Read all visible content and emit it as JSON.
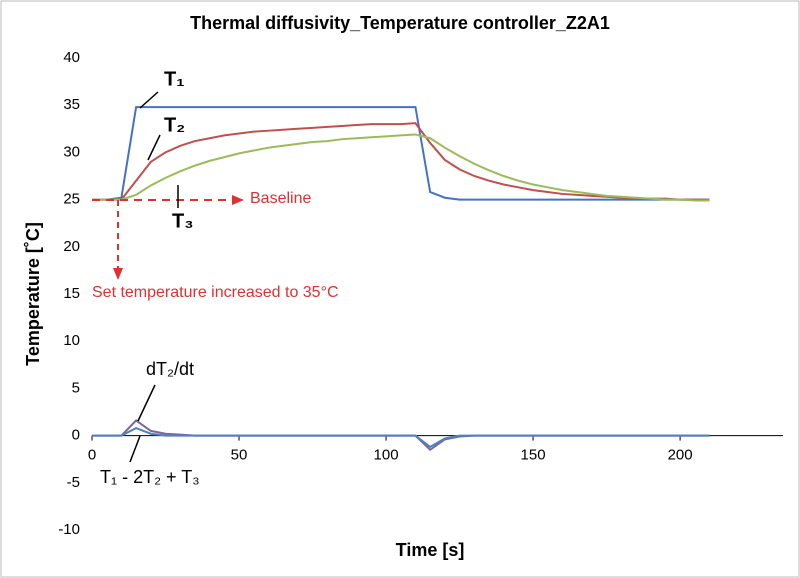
{
  "chart_data": {
    "type": "line",
    "title": "Thermal diffusivity_Temperature controller_Z2A1",
    "x_label": "Time [s]",
    "y_label": "Temperature [˚C]",
    "xlim": [
      0,
      235
    ],
    "xticks": [
      0,
      50,
      100,
      150,
      200
    ],
    "ylim": [
      -10,
      40
    ],
    "yticks": [
      -10,
      -5,
      0,
      5,
      10,
      15,
      20,
      25,
      30,
      35,
      40
    ],
    "x": [
      0,
      5,
      10,
      15,
      20,
      25,
      30,
      35,
      40,
      45,
      50,
      55,
      60,
      65,
      70,
      75,
      80,
      85,
      90,
      95,
      100,
      105,
      110,
      115,
      120,
      125,
      130,
      135,
      140,
      145,
      150,
      155,
      160,
      165,
      170,
      175,
      180,
      185,
      190,
      195,
      200,
      205,
      210
    ],
    "series": [
      {
        "name": "T₁",
        "color": "#4472c4",
        "values": [
          25,
          25,
          25.2,
          34.8,
          34.8,
          34.8,
          34.8,
          34.8,
          34.8,
          34.8,
          34.8,
          34.8,
          34.8,
          34.8,
          34.8,
          34.8,
          34.8,
          34.8,
          34.8,
          34.8,
          34.8,
          34.8,
          34.8,
          25.8,
          25.2,
          25,
          25,
          25,
          25,
          25,
          25,
          25,
          25,
          25,
          25,
          25,
          25,
          25,
          25,
          25,
          25,
          25,
          25
        ]
      },
      {
        "name": "T₂",
        "color": "#c0504d",
        "values": [
          25,
          25,
          25,
          27,
          29,
          30,
          30.7,
          31.2,
          31.5,
          31.8,
          32,
          32.2,
          32.3,
          32.4,
          32.5,
          32.6,
          32.7,
          32.8,
          32.9,
          33,
          33,
          33,
          33.1,
          31,
          29.2,
          28.2,
          27.5,
          27,
          26.6,
          26.3,
          26,
          25.8,
          25.6,
          25.5,
          25.4,
          25.3,
          25.2,
          25.1,
          25.1,
          25.1,
          25,
          25,
          25
        ]
      },
      {
        "name": "T₃",
        "color": "#9bbb59",
        "values": [
          25,
          25,
          25,
          25.5,
          26.5,
          27.3,
          28,
          28.6,
          29.1,
          29.5,
          29.9,
          30.2,
          30.5,
          30.7,
          30.9,
          31.1,
          31.2,
          31.4,
          31.5,
          31.6,
          31.7,
          31.8,
          31.9,
          31.5,
          30.5,
          29.6,
          28.8,
          28.1,
          27.5,
          27,
          26.6,
          26.3,
          26,
          25.8,
          25.6,
          25.4,
          25.3,
          25.2,
          25.1,
          25,
          25,
          24.9,
          24.9
        ]
      },
      {
        "name": "dT₂/dt",
        "color": "#8064a2",
        "values": [
          0,
          0,
          0,
          1.6,
          0.5,
          0.2,
          0.1,
          0,
          0,
          0,
          0,
          0,
          0,
          0,
          0,
          0,
          0,
          0,
          0,
          0,
          0,
          0,
          0,
          -1.5,
          -0.4,
          -0.1,
          0,
          0,
          0,
          0,
          0,
          0,
          0,
          0,
          0,
          0,
          0,
          0,
          0,
          0,
          0,
          0,
          0
        ]
      },
      {
        "name": "T₁ - 2T₂ + T₃",
        "color": "#4f81bd",
        "values": [
          0,
          0,
          0,
          0.8,
          0.2,
          0,
          0,
          0,
          0,
          0,
          0,
          0,
          0,
          0,
          0,
          0,
          0,
          0,
          0,
          0,
          0,
          0,
          0,
          -1.2,
          -0.3,
          0,
          0,
          0,
          0,
          0,
          0,
          0,
          0,
          0,
          0,
          0,
          0,
          0,
          0,
          0,
          0,
          0,
          0
        ]
      }
    ],
    "annotations": [
      "Baseline",
      "Set temperature increased to 35°C"
    ]
  }
}
